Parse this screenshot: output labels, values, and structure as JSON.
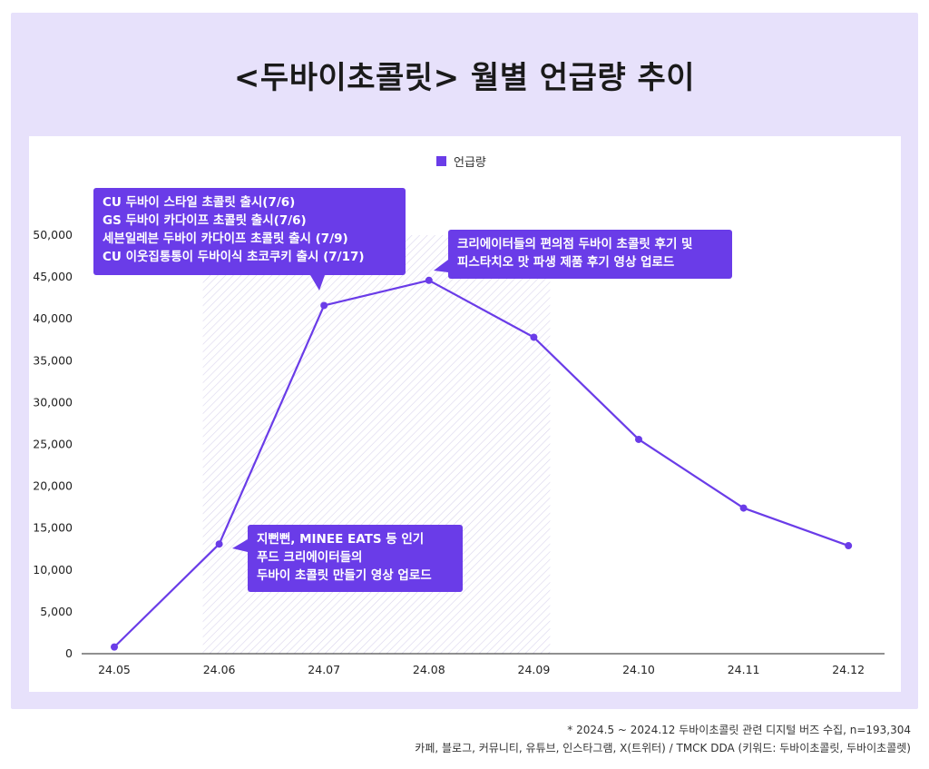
{
  "title": "<두바이초콜릿> 월별 언급량 추이",
  "chart_data": {
    "type": "line",
    "title": "<두바이초콜릿> 월별 언급량 추이",
    "categories": [
      "24.05",
      "24.06",
      "24.07",
      "24.08",
      "24.09",
      "24.10",
      "24.11",
      "24.12"
    ],
    "series": [
      {
        "name": "언급량",
        "values": [
          800,
          13100,
          41600,
          44600,
          37800,
          25600,
          17400,
          12900
        ]
      }
    ],
    "ylim": [
      0,
      50000
    ],
    "yticks": [
      0,
      5000,
      10000,
      15000,
      20000,
      25000,
      30000,
      35000,
      40000,
      45000,
      50000
    ],
    "ytick_labels": [
      "0",
      "5,000",
      "10,000",
      "15,000",
      "20,000",
      "25,000",
      "30,000",
      "35,000",
      "40,000",
      "45,000",
      "50,000"
    ],
    "highlight_range": [
      "24.06",
      "24.09"
    ],
    "color": "#6a3ce8",
    "legend": "top-center",
    "xlabel": "",
    "ylabel": ""
  },
  "callouts": {
    "july": {
      "lines": [
        "CU 두바이 스타일 초콜릿 출시(7/6)",
        "GS  두바이 카다이프 초콜릿 출시(7/6)",
        "세븐일레븐 두바이 카다이프 초콜릿 출시 (7/9)",
        "CU 이웃집통통이 두바이식 초코쿠키 출시 (7/17)"
      ]
    },
    "august": {
      "lines": [
        "크리에이터들의 편의점 두바이 초콜릿 후기 및",
        "피스타치오 맛 파생 제품 후기 영상 업로드"
      ]
    },
    "june": {
      "lines": [
        "지뻔뻔, MINEE EATS 등 인기",
        "푸드 크리에이터들의",
        "두바이 초콜릿 만들기 영상 업로드"
      ]
    }
  },
  "footnote": {
    "line1": "* 2024.5 ~ 2024.12 두바이초콜릿 관련 디지털 버즈 수집, n=193,304",
    "line2": "카페, 블로그, 커뮤니티, 유튜브, 인스타그램, X(트위터) / TMCK DDA (키워드: 두바이초콜릿, 두바이초콜렛)"
  }
}
